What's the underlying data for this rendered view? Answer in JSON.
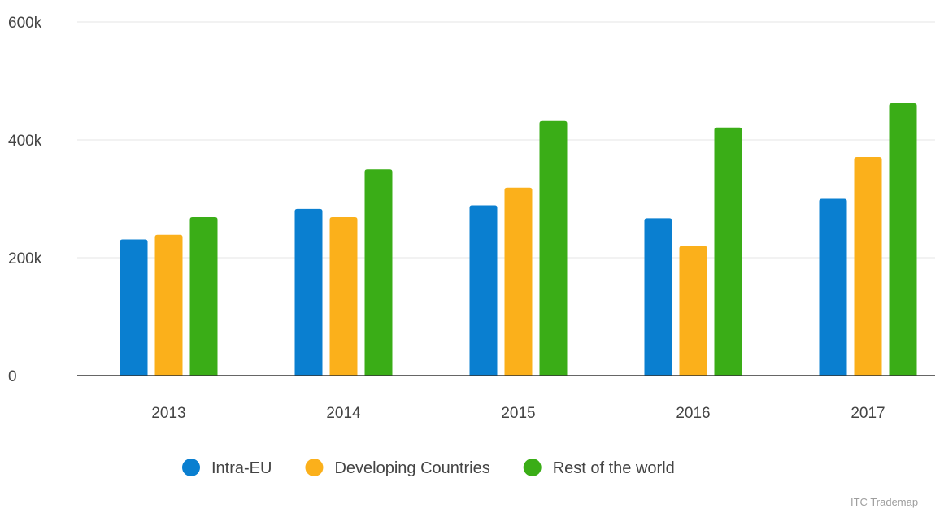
{
  "chart_data": {
    "type": "bar",
    "categories": [
      "2013",
      "2014",
      "2015",
      "2016",
      "2017"
    ],
    "series": [
      {
        "name": "Intra-EU",
        "color": "#0a7fd0",
        "values": [
          231000,
          283000,
          289000,
          267000,
          300000
        ]
      },
      {
        "name": "Developing Countries",
        "color": "#fbb01b",
        "values": [
          239000,
          269000,
          319000,
          220000,
          371000
        ]
      },
      {
        "name": "Rest of the world",
        "color": "#3aad17",
        "values": [
          269000,
          350000,
          432000,
          421000,
          462000
        ]
      }
    ],
    "ylim": [
      0,
      600000
    ],
    "yticks": [
      {
        "value": 0,
        "label": "0"
      },
      {
        "value": 200000,
        "label": "200k"
      },
      {
        "value": 400000,
        "label": "400k"
      },
      {
        "value": 600000,
        "label": "600k"
      }
    ],
    "grid": true,
    "legend_position": "bottom",
    "source": "ITC Trademap"
  }
}
